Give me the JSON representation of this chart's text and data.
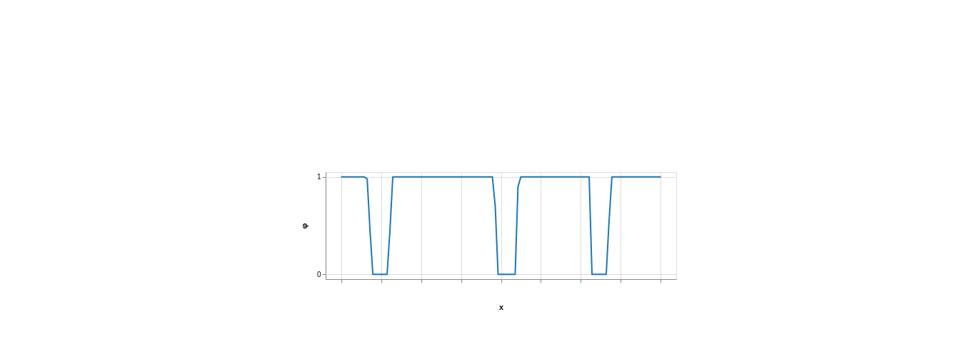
{
  "chart_data": {
    "type": "line",
    "xlabel": "x",
    "ylabel": "φ",
    "categories": [
      null,
      null,
      null,
      null,
      null,
      null,
      null,
      null,
      null,
      null,
      null,
      null,
      null,
      null,
      null,
      null,
      null,
      null,
      null,
      null,
      null,
      null,
      null,
      null,
      null,
      null,
      null,
      null,
      null,
      null,
      null,
      null,
      null,
      null,
      null,
      null,
      null,
      null,
      null,
      null,
      null,
      null,
      null,
      null,
      null,
      null,
      null,
      null,
      null,
      null,
      null,
      null,
      null,
      null,
      null,
      null,
      null,
      null,
      null,
      null,
      null,
      null,
      null,
      null,
      null,
      null,
      null,
      null,
      null,
      null,
      null,
      null,
      null,
      null,
      null,
      null,
      null,
      null,
      null,
      null,
      null,
      null,
      null,
      null,
      null,
      null,
      null,
      null,
      null,
      null,
      null,
      null,
      null,
      null,
      null,
      null,
      null,
      null,
      null,
      null,
      null,
      null,
      null,
      null,
      null,
      null,
      null,
      null,
      null,
      null,
      null,
      null,
      null
    ],
    "series": [
      {
        "color": "#1f77b4",
        "values": [
          1,
          1,
          1,
          1,
          1,
          1,
          1,
          1,
          1,
          0.98,
          0.45,
          0,
          0,
          0,
          0,
          0,
          0,
          0.45,
          1,
          1,
          1,
          1,
          1,
          1,
          1,
          1,
          1,
          1,
          1,
          1,
          1,
          1,
          1,
          1,
          1,
          1,
          1,
          1,
          1,
          1,
          1,
          1,
          1,
          1,
          1,
          1,
          1,
          1,
          1,
          1,
          1,
          1,
          1,
          1,
          0.7,
          0,
          0,
          0,
          0,
          0,
          0,
          0,
          0.9,
          1,
          1,
          1,
          1,
          1,
          1,
          1,
          1,
          1,
          1,
          1,
          1,
          1,
          1,
          1,
          1,
          1,
          1,
          1,
          1,
          1,
          1,
          1,
          1,
          1,
          0,
          0,
          0,
          0,
          0,
          0,
          0.55,
          1,
          1,
          1,
          1,
          1,
          1,
          1,
          1,
          1,
          1,
          1,
          1,
          1,
          1,
          1,
          1,
          1,
          1
        ]
      }
    ],
    "ylim": [
      -0.05,
      1.05
    ],
    "yticks": [
      0,
      1
    ],
    "grid": true,
    "line_style": "solid"
  }
}
